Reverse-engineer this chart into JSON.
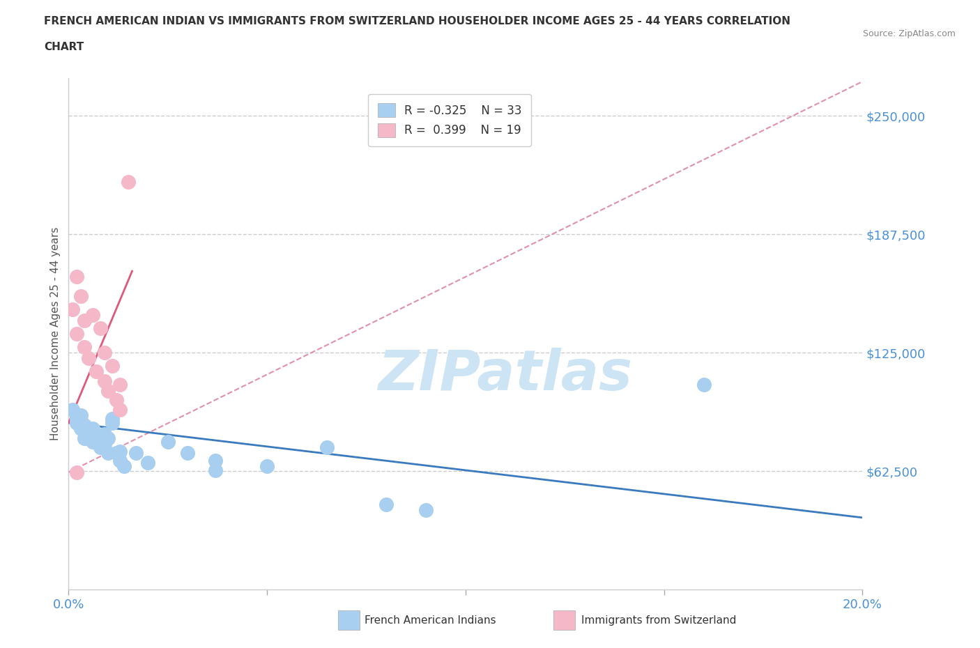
{
  "title_line1": "FRENCH AMERICAN INDIAN VS IMMIGRANTS FROM SWITZERLAND HOUSEHOLDER INCOME AGES 25 - 44 YEARS CORRELATION",
  "title_line2": "CHART",
  "source_text": "Source: ZipAtlas.com",
  "ylabel": "Householder Income Ages 25 - 44 years",
  "xlim": [
    0.0,
    0.2
  ],
  "ylim": [
    0,
    270000
  ],
  "yticks": [
    62500,
    125000,
    187500,
    250000
  ],
  "ytick_labels": [
    "$62,500",
    "$125,000",
    "$187,500",
    "$250,000"
  ],
  "xticks": [
    0.0,
    0.05,
    0.1,
    0.15,
    0.2
  ],
  "xtick_labels": [
    "0.0%",
    "",
    "",
    "",
    "20.0%"
  ],
  "background_color": "#ffffff",
  "grid_color": "#cccccc",
  "watermark_text": "ZIPatlas",
  "watermark_color": "#cce4f4",
  "legend_r1": "R = -0.325",
  "legend_n1": "N = 33",
  "legend_r2": "R =  0.399",
  "legend_n2": "N = 19",
  "blue_color": "#a8cef0",
  "pink_color": "#f5b8c8",
  "blue_line_color": "#3a7abf",
  "pink_line_color": "#e05878",
  "dash_color": "#e090a8",
  "blue_scatter": [
    [
      0.001,
      95000
    ],
    [
      0.002,
      88000
    ],
    [
      0.002,
      90000
    ],
    [
      0.003,
      92000
    ],
    [
      0.003,
      85000
    ],
    [
      0.004,
      87000
    ],
    [
      0.004,
      80000
    ],
    [
      0.005,
      83000
    ],
    [
      0.006,
      78000
    ],
    [
      0.006,
      85000
    ],
    [
      0.007,
      80000
    ],
    [
      0.008,
      75000
    ],
    [
      0.009,
      82000
    ],
    [
      0.009,
      77000
    ],
    [
      0.01,
      72000
    ],
    [
      0.01,
      80000
    ],
    [
      0.011,
      90000
    ],
    [
      0.011,
      88000
    ],
    [
      0.012,
      72000
    ],
    [
      0.013,
      73000
    ],
    [
      0.013,
      68000
    ],
    [
      0.014,
      65000
    ],
    [
      0.017,
      72000
    ],
    [
      0.02,
      67000
    ],
    [
      0.025,
      78000
    ],
    [
      0.03,
      72000
    ],
    [
      0.037,
      68000
    ],
    [
      0.037,
      63000
    ],
    [
      0.05,
      65000
    ],
    [
      0.065,
      75000
    ],
    [
      0.08,
      45000
    ],
    [
      0.09,
      42000
    ],
    [
      0.16,
      108000
    ]
  ],
  "pink_scatter": [
    [
      0.001,
      148000
    ],
    [
      0.002,
      165000
    ],
    [
      0.002,
      135000
    ],
    [
      0.003,
      155000
    ],
    [
      0.004,
      142000
    ],
    [
      0.004,
      128000
    ],
    [
      0.005,
      122000
    ],
    [
      0.006,
      145000
    ],
    [
      0.007,
      115000
    ],
    [
      0.008,
      138000
    ],
    [
      0.009,
      110000
    ],
    [
      0.009,
      125000
    ],
    [
      0.01,
      105000
    ],
    [
      0.011,
      118000
    ],
    [
      0.012,
      100000
    ],
    [
      0.013,
      95000
    ],
    [
      0.013,
      108000
    ],
    [
      0.015,
      215000
    ],
    [
      0.002,
      62000
    ]
  ],
  "blue_trend_x": [
    0.0,
    0.2
  ],
  "blue_trend_y": [
    88000,
    38000
  ],
  "pink_trend_x": [
    0.0,
    0.016
  ],
  "pink_trend_y": [
    88000,
    168000
  ],
  "dash_trend_x": [
    0.0,
    0.2
  ],
  "dash_trend_y": [
    62000,
    268000
  ]
}
